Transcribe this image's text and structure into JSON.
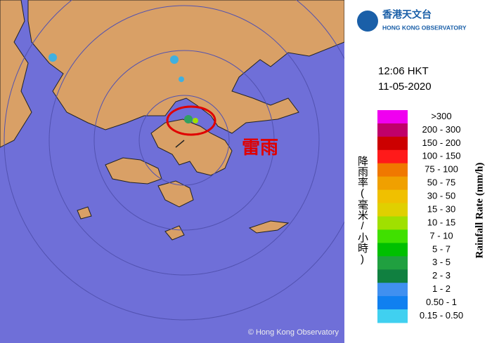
{
  "header": {
    "logo_chinese": "香港天文台",
    "logo_english": "HONG KONG OBSERVATORY"
  },
  "time": "12:06 HKT",
  "date": "11-05-2020",
  "annotation": "雷雨",
  "copyright": "© Hong Kong Observatory",
  "legend": {
    "title_chinese": "降雨率(毫米/小時)",
    "title_english": "Rainfall Rate (mm/h)",
    "items": [
      {
        "label": ">300",
        "color": "#f000f0"
      },
      {
        "label": "200 - 300",
        "color": "#c0006a"
      },
      {
        "label": "150 - 200",
        "color": "#cc0000"
      },
      {
        "label": "100 - 150",
        "color": "#ff1a1a"
      },
      {
        "label": "75 - 100",
        "color": "#f07800"
      },
      {
        "label": "50 - 75",
        "color": "#f0a000"
      },
      {
        "label": "30 - 50",
        "color": "#f0c000"
      },
      {
        "label": "15 - 30",
        "color": "#e0d000"
      },
      {
        "label": "10 - 15",
        "color": "#a0e000"
      },
      {
        "label": "7 - 10",
        "color": "#40e000"
      },
      {
        "label": "5 - 7",
        "color": "#00c000"
      },
      {
        "label": "3 - 5",
        "color": "#20a040"
      },
      {
        "label": "2 - 3",
        "color": "#108040"
      },
      {
        "label": "1 - 2",
        "color": "#4090f0"
      },
      {
        "label": "0.50 - 1",
        "color": "#1080f0"
      },
      {
        "label": "0.15 - 0.50",
        "color": "#40d0f0"
      }
    ]
  }
}
